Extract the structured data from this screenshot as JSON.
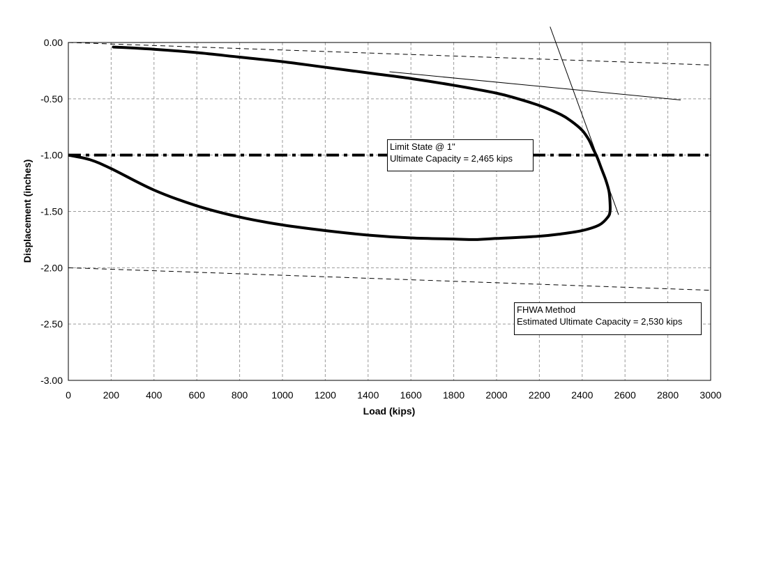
{
  "chart_data": {
    "type": "line",
    "xlabel": "Load (kips)",
    "ylabel": "Displacement (inches)",
    "xlim": [
      0,
      3000
    ],
    "ylim": [
      -3.0,
      0.0
    ],
    "grid": true,
    "x_ticks": [
      "0",
      "200",
      "400",
      "600",
      "800",
      "1000",
      "1200",
      "1400",
      "1600",
      "1800",
      "2000",
      "2200",
      "2400",
      "2600",
      "2800",
      "3000"
    ],
    "y_ticks": [
      "0.00",
      "-0.50",
      "-1.00",
      "-1.50",
      "-2.00",
      "-2.50",
      "-3.00"
    ],
    "series": [
      {
        "style": "thick-solid",
        "x": [
          210,
          400,
          600,
          800,
          1000,
          1200,
          1400,
          1600,
          1800,
          2000,
          2100,
          2200,
          2300,
          2350,
          2400,
          2430,
          2450,
          2470,
          2490,
          2510,
          2525,
          2530,
          2530,
          2520,
          2480,
          2400,
          2300,
          2200,
          2000,
          1900,
          1800,
          1600,
          1400,
          1200,
          1000,
          800,
          600,
          400,
          200,
          100,
          0
        ],
        "y": [
          -0.04,
          -0.06,
          -0.09,
          -0.13,
          -0.17,
          -0.22,
          -0.27,
          -0.32,
          -0.38,
          -0.45,
          -0.5,
          -0.56,
          -0.64,
          -0.7,
          -0.78,
          -0.86,
          -0.94,
          -1.02,
          -1.12,
          -1.22,
          -1.32,
          -1.42,
          -1.5,
          -1.55,
          -1.62,
          -1.67,
          -1.7,
          -1.72,
          -1.74,
          -1.75,
          -1.745,
          -1.735,
          -1.71,
          -1.67,
          -1.62,
          -1.55,
          -1.45,
          -1.31,
          -1.12,
          -1.04,
          -1.0
        ]
      },
      {
        "style": "thin-solid",
        "x": [
          1500,
          2860
        ],
        "y": [
          -0.26,
          -0.51
        ]
      },
      {
        "style": "thin-solid",
        "x": [
          2250,
          2570
        ],
        "y": [
          0.14,
          -1.53
        ]
      },
      {
        "style": "dashed",
        "x": [
          0,
          3000
        ],
        "y": [
          0.0,
          -0.2
        ]
      },
      {
        "style": "dashed",
        "x": [
          0,
          3000
        ],
        "y": [
          -2.0,
          -2.2
        ]
      },
      {
        "style": "dash-dot",
        "x": [
          0,
          3000
        ],
        "y": [
          -1.0,
          -1.0
        ]
      }
    ],
    "annotations": [
      {
        "lines": [
          "Limit State @ 1\"",
          "Ultimate Capacity = 2,465 kips"
        ]
      },
      {
        "lines": [
          "FHWA Method",
          "Estimated Ultimate Capacity = 2,530 kips"
        ]
      }
    ]
  }
}
